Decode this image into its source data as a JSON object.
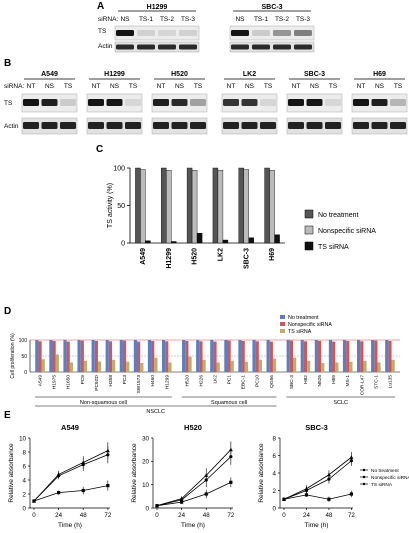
{
  "panel_labels": {
    "a": "A",
    "b": "B",
    "c": "C",
    "d": "D",
    "e": "E"
  },
  "panel_a": {
    "sirna_label": "siRNA:",
    "groups": [
      "H1299",
      "SBC-3"
    ],
    "lanes": [
      "NS",
      "TS-1",
      "TS-2",
      "TS-3",
      "NS",
      "TS-1",
      "TS-2",
      "TS-3"
    ],
    "row_labels": [
      "TS",
      "Actin"
    ]
  },
  "panel_b": {
    "sirna_label": "siRNA:",
    "groups": [
      "A549",
      "H1299",
      "H520",
      "LK2",
      "SBC-3",
      "H69"
    ],
    "lanes": [
      "NT",
      "NS",
      "TS"
    ],
    "row_labels": [
      "TS",
      "Actin"
    ]
  },
  "chart_data": [
    {
      "type": "bar",
      "panel": "C",
      "ylabel": "TS activity (%)",
      "ylim": [
        0,
        100
      ],
      "yticks": [
        0,
        50,
        100
      ],
      "categories": [
        "A549",
        "H1299",
        "H520",
        "LK2",
        "SBC-3",
        "H69"
      ],
      "series": [
        {
          "name": "No treatment",
          "values": [
            100,
            100,
            100,
            100,
            100,
            100
          ],
          "color": "#555555"
        },
        {
          "name": "Nonspecific siRNA",
          "values": [
            98,
            97,
            97,
            97,
            98,
            97
          ],
          "color": "#bbbbbb"
        },
        {
          "name": "TS siRNA",
          "values": [
            3,
            2,
            13,
            4,
            7,
            11
          ],
          "color": "#111111"
        }
      ],
      "legend": "right"
    },
    {
      "type": "bar",
      "panel": "D",
      "ylabel": "Cell proliferation (%)",
      "ylim": [
        0,
        100
      ],
      "yticks": [
        0,
        50,
        100
      ],
      "categories": [
        "A549",
        "H1975",
        "H1650",
        "PC9",
        "PC9ZD",
        "H358",
        "PC3",
        "SW1573",
        "H460",
        "H1299",
        "H520",
        "H226",
        "LK2",
        "PC1",
        "EBC-1",
        "PC10",
        "QG56",
        "SBC-3",
        "H82",
        "N526",
        "H69",
        "MS-1",
        "COR-L47",
        "STC-1",
        "Lu135"
      ],
      "series": [
        {
          "name": "No treatment",
          "values": [
            100,
            100,
            100,
            100,
            100,
            100,
            100,
            100,
            100,
            100,
            100,
            100,
            100,
            100,
            100,
            100,
            100,
            100,
            100,
            100,
            100,
            100,
            100,
            100,
            100
          ],
          "color": "#5b7fc7"
        },
        {
          "name": "Nonspecific siRNA",
          "values": [
            96,
            97,
            95,
            98,
            97,
            96,
            98,
            95,
            97,
            96,
            97,
            96,
            95,
            98,
            97,
            96,
            95,
            98,
            96,
            97,
            95,
            97,
            96,
            98,
            97
          ],
          "color": "#c85a5a"
        },
        {
          "name": "TS siRNA",
          "values": [
            40,
            55,
            30,
            35,
            33,
            38,
            32,
            28,
            45,
            30,
            48,
            38,
            30,
            35,
            32,
            38,
            42,
            45,
            35,
            28,
            30,
            32,
            35,
            30,
            38
          ],
          "color": "#b8b070"
        }
      ],
      "legend": "top-right",
      "groups": [
        {
          "label": "Non-squamous cell",
          "count": 10
        },
        {
          "label": "Squamous cell",
          "count": 7
        },
        {
          "label": "SCLC",
          "count": 8
        }
      ],
      "supergroup": "NSCLC"
    },
    {
      "type": "line",
      "panel": "E",
      "title": "A549",
      "xlabel": "Time (h)",
      "ylabel": "Relative absorbance",
      "x": [
        0,
        24,
        48,
        72
      ],
      "xticks": [
        0,
        24,
        48,
        72
      ],
      "ylim": [
        0,
        10
      ],
      "yticks": [
        0,
        2,
        4,
        6,
        8,
        10
      ],
      "series": [
        {
          "name": "No treatment",
          "values": [
            1,
            4.8,
            6.5,
            8.2
          ]
        },
        {
          "name": "Nonspecific siRNA",
          "values": [
            1,
            4.6,
            6.2,
            7.6
          ]
        },
        {
          "name": "TS siRNA",
          "values": [
            1,
            2.2,
            2.5,
            3.2
          ]
        }
      ]
    },
    {
      "type": "line",
      "panel": "E",
      "title": "H520",
      "xlabel": "Time (h)",
      "ylabel": "Relative absorbance",
      "x": [
        0,
        24,
        48,
        72
      ],
      "xticks": [
        0,
        24,
        48,
        72
      ],
      "ylim": [
        0,
        30
      ],
      "yticks": [
        0,
        10,
        20,
        30
      ],
      "series": [
        {
          "name": "No treatment",
          "values": [
            1,
            4,
            14,
            25
          ]
        },
        {
          "name": "Nonspecific siRNA",
          "values": [
            1,
            3.5,
            12,
            22
          ]
        },
        {
          "name": "TS siRNA",
          "values": [
            1,
            2.5,
            6,
            11
          ]
        }
      ]
    },
    {
      "type": "line",
      "panel": "E",
      "title": "SBC-3",
      "xlabel": "Time (h)",
      "ylabel": "Relative absorbance",
      "x": [
        0,
        24,
        48,
        72
      ],
      "xticks": [
        0,
        24,
        48,
        72
      ],
      "ylim": [
        0,
        8
      ],
      "yticks": [
        0,
        2,
        4,
        6,
        8
      ],
      "series": [
        {
          "name": "No treatment",
          "values": [
            1,
            2.2,
            3.8,
            5.8
          ]
        },
        {
          "name": "Nonspecific siRNA",
          "values": [
            1,
            2.0,
            3.3,
            5.4
          ]
        },
        {
          "name": "TS siRNA",
          "values": [
            1,
            1.5,
            1.0,
            1.6
          ]
        }
      ],
      "legend": "right"
    }
  ]
}
